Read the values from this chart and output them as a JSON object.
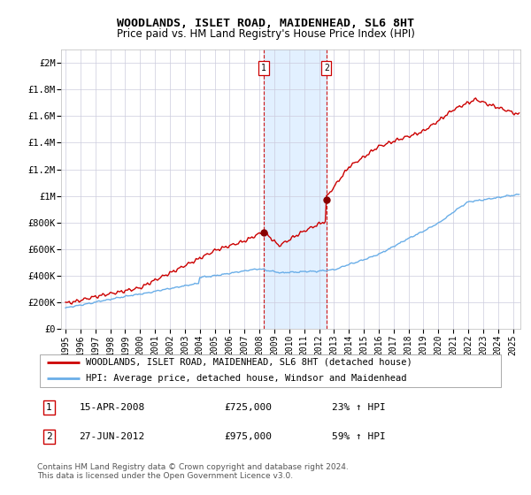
{
  "title": "WOODLANDS, ISLET ROAD, MAIDENHEAD, SL6 8HT",
  "subtitle": "Price paid vs. HM Land Registry's House Price Index (HPI)",
  "ylabel_ticks": [
    "£0",
    "£200K",
    "£400K",
    "£600K",
    "£800K",
    "£1M",
    "£1.2M",
    "£1.4M",
    "£1.6M",
    "£1.8M",
    "£2M"
  ],
  "ytick_vals": [
    0,
    200000,
    400000,
    600000,
    800000,
    1000000,
    1200000,
    1400000,
    1600000,
    1800000,
    2000000
  ],
  "ylim": [
    0,
    2100000
  ],
  "xlim_start": 1994.7,
  "xlim_end": 2025.5,
  "hpi_color": "#6aaee8",
  "price_color": "#cc0000",
  "marker_color": "#880000",
  "shade_color": "#ddeeff",
  "purchase1_x": 2008.29,
  "purchase1_y": 725000,
  "purchase2_x": 2012.49,
  "purchase2_y": 975000,
  "legend_line1": "WOODLANDS, ISLET ROAD, MAIDENHEAD, SL6 8HT (detached house)",
  "legend_line2": "HPI: Average price, detached house, Windsor and Maidenhead",
  "table_row1": [
    "1",
    "15-APR-2008",
    "£725,000",
    "23% ↑ HPI"
  ],
  "table_row2": [
    "2",
    "27-JUN-2012",
    "£975,000",
    "59% ↑ HPI"
  ],
  "footnote": "Contains HM Land Registry data © Crown copyright and database right 2024.\nThis data is licensed under the Open Government Licence v3.0.",
  "title_fontsize": 9.5,
  "subtitle_fontsize": 8.5,
  "tick_fontsize": 7.5,
  "legend_fontsize": 7.5,
  "table_fontsize": 8,
  "footnote_fontsize": 6.5,
  "grid_color": "#ccccdd"
}
